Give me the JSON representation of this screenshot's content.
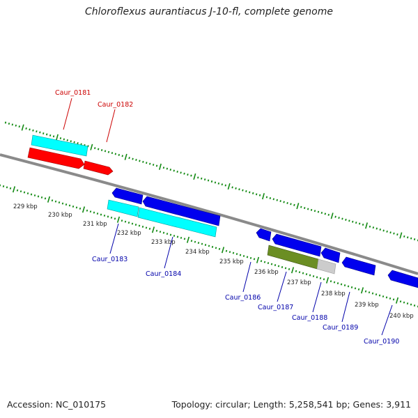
{
  "title": "Chloroflexus aurantiacus J-10-fl, complete genome",
  "footer": {
    "accession": "Accession: NC_010175",
    "summary": "Topology: circular; Length: 5,258,541 bp; Genes: 3,911"
  },
  "colors": {
    "backbone": "#808080",
    "tick": "#138a13",
    "forward_label": "#cc0000",
    "reverse_label": "#0000aa",
    "cyan": "#00ffff",
    "red": "#ff0000",
    "blue": "#0000ee",
    "olive": "#6b8e23",
    "grey": "#cccccc"
  },
  "scale_labels": [
    "229 kbp",
    "230 kbp",
    "231 kbp",
    "232 kbp",
    "233 kbp",
    "234 kbp",
    "235 kbp",
    "236 kbp",
    "237 kbp",
    "238 kbp",
    "239 kbp",
    "240 kbp"
  ],
  "gene_labels": [
    "Caur_0181",
    "Caur_0182",
    "Caur_0183",
    "Caur_0184",
    "Caur_0186",
    "Caur_0187",
    "Caur_0188",
    "Caur_0189",
    "Caur_0190"
  ]
}
